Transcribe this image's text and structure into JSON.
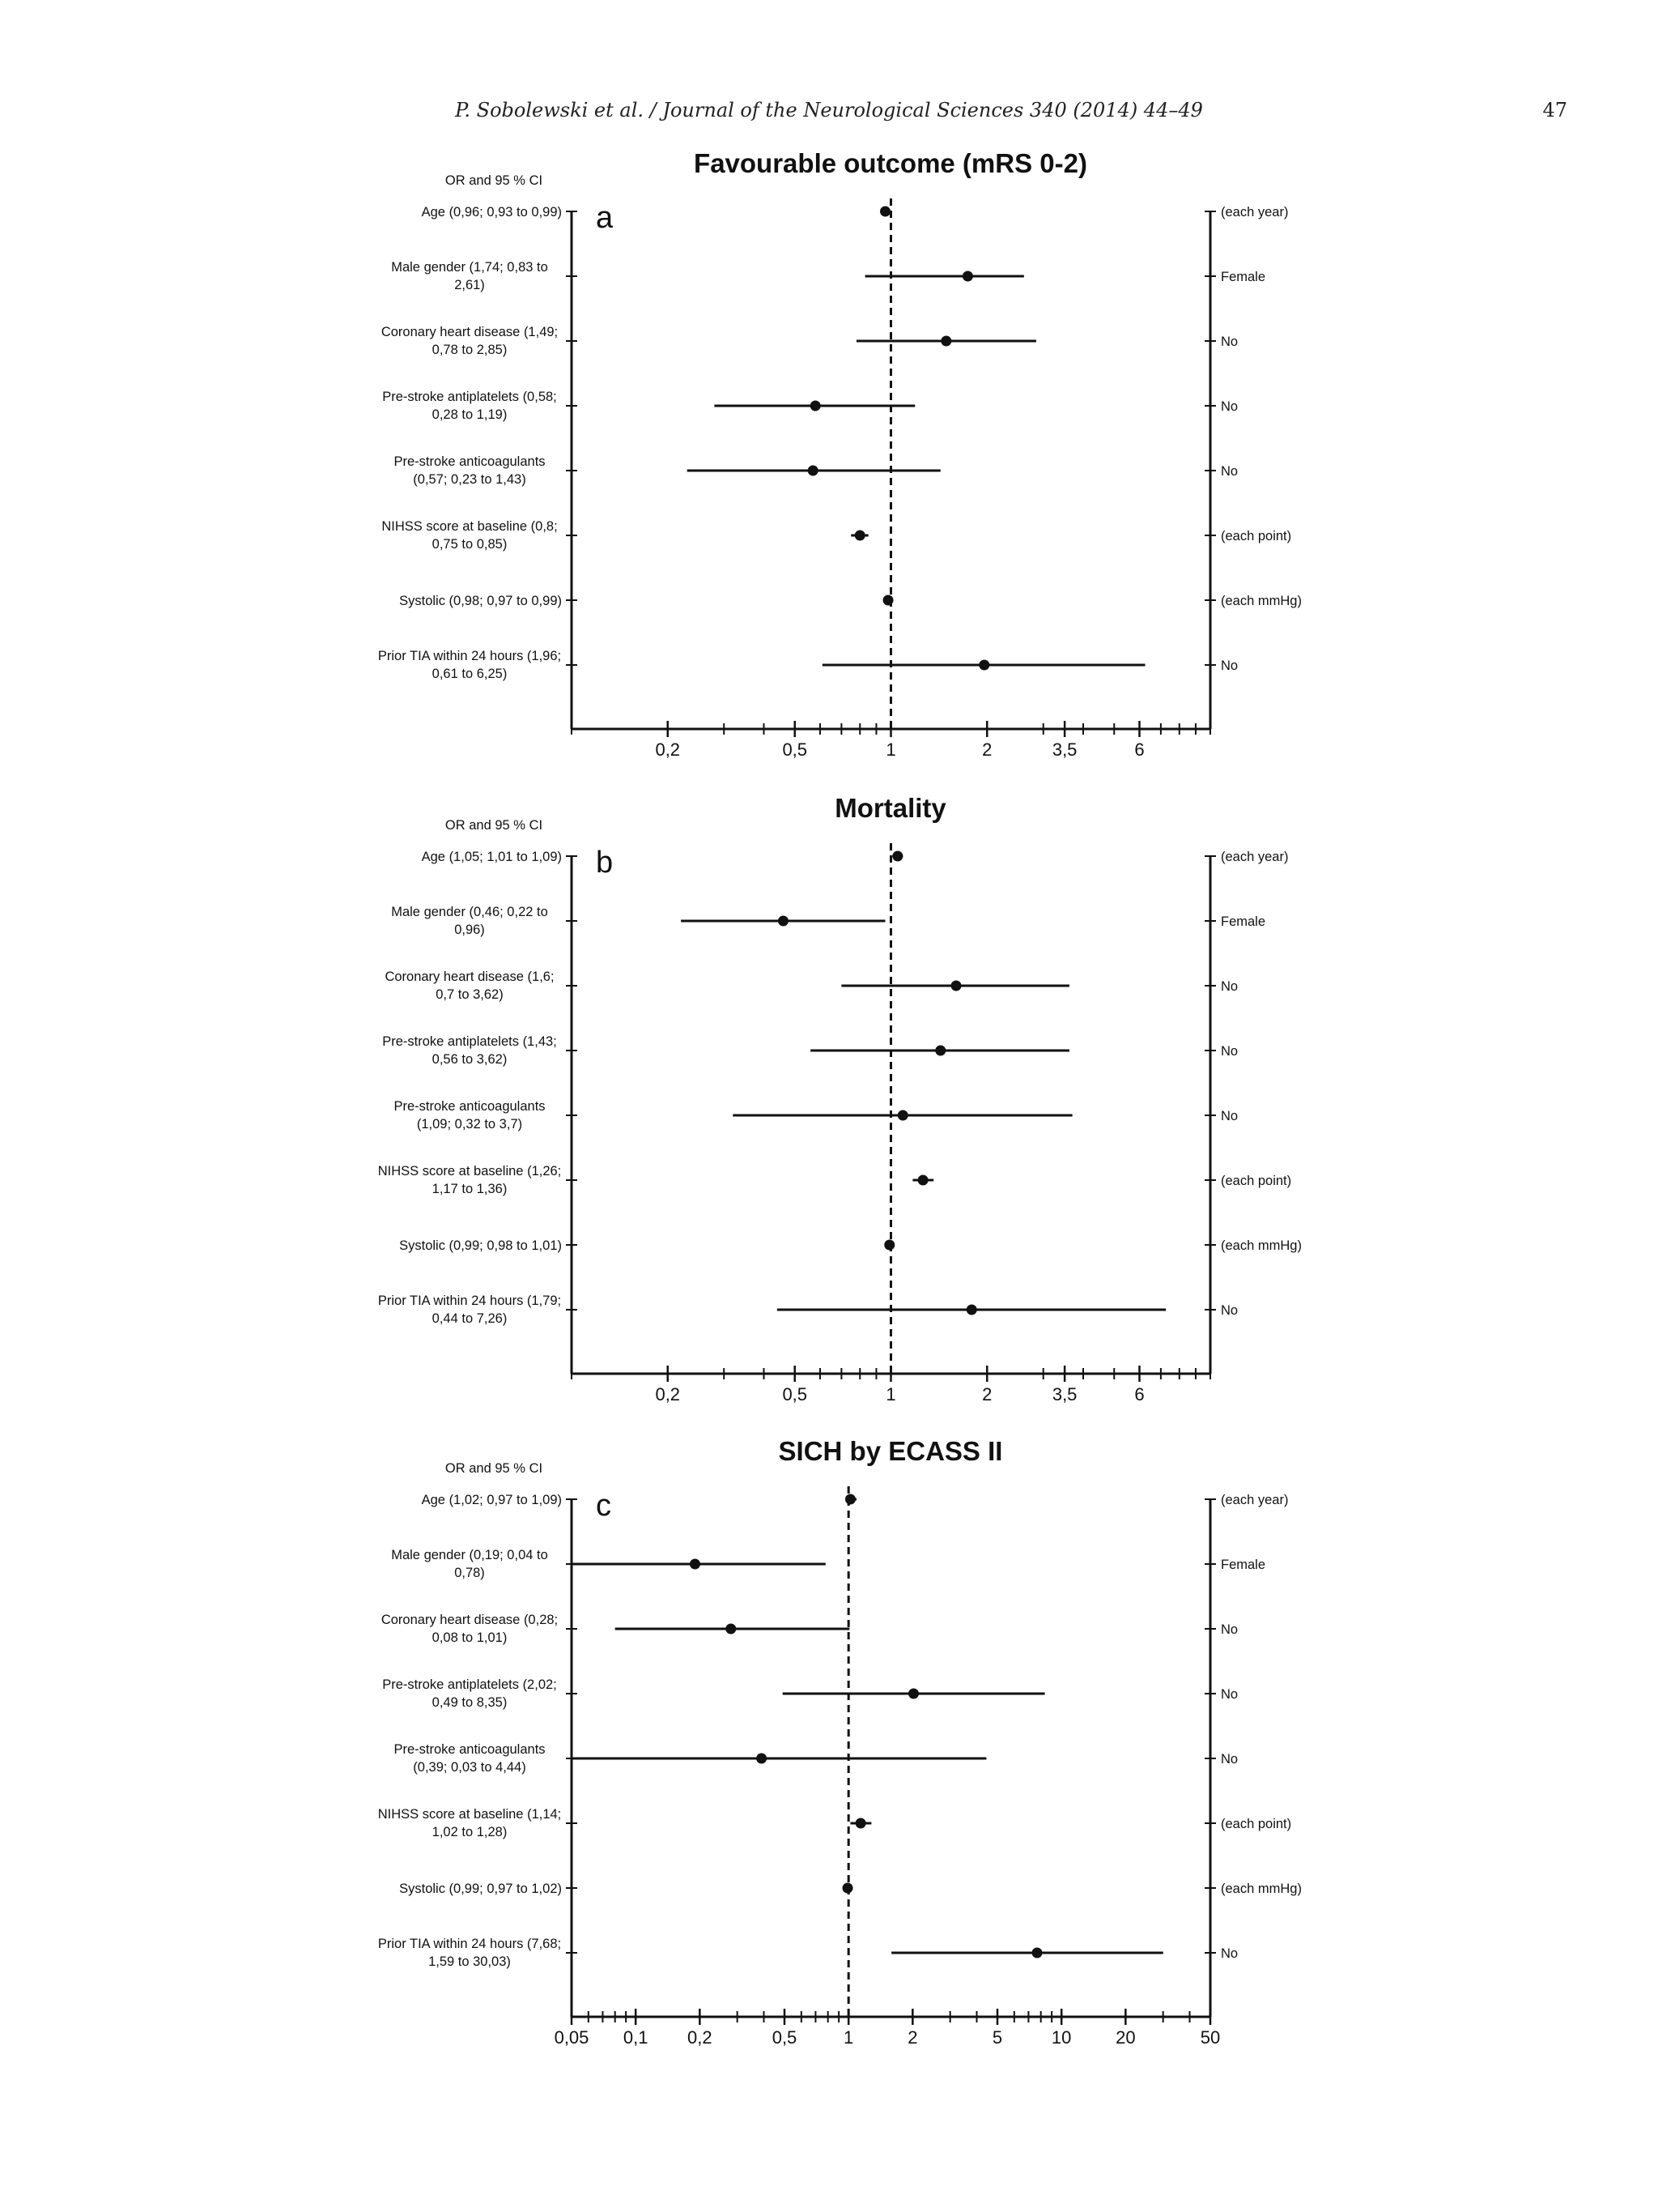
{
  "header": {
    "citation": "P. Sobolewski et al. / Journal of the Neurological Sciences 340 (2014) 44–49",
    "page_number": "47"
  },
  "chart_data": [
    {
      "type": "forest",
      "panel_letter": "a",
      "title": "Favourable outcome (mRS 0-2)",
      "column_header": "OR and 95 % CI",
      "scale": "log",
      "xlim": [
        0.1,
        10
      ],
      "reference_line": 1,
      "tick_values": [
        0.2,
        0.5,
        1,
        2,
        3.5,
        6
      ],
      "tick_labels": [
        "0,2",
        "0,5",
        "1",
        "2",
        "3,5",
        "6"
      ],
      "rows": [
        {
          "label_lines": [
            "Age (0,96;  0,93  to  0,99)"
          ],
          "reference": "(each year)",
          "or": 0.96,
          "lo": 0.93,
          "hi": 0.99
        },
        {
          "label_lines": [
            "Male gender (1,74;  0,83  to",
            "2,61)"
          ],
          "reference": "Female",
          "or": 1.74,
          "lo": 0.83,
          "hi": 2.61
        },
        {
          "label_lines": [
            "Coronary heart disease (1,49;",
            "0,78  to  2,85)"
          ],
          "reference": "No",
          "or": 1.49,
          "lo": 0.78,
          "hi": 2.85
        },
        {
          "label_lines": [
            "Pre-stroke antiplatelets (0,58;",
            "0,28  to  1,19)"
          ],
          "reference": "No",
          "or": 0.58,
          "lo": 0.28,
          "hi": 1.19
        },
        {
          "label_lines": [
            "Pre-stroke anticoagulants",
            "(0,57;  0,23  to  1,43)"
          ],
          "reference": "No",
          "or": 0.57,
          "lo": 0.23,
          "hi": 1.43
        },
        {
          "label_lines": [
            "NIHSS score at baseline (0,8;",
            "0,75  to  0,85)"
          ],
          "reference": "(each point)",
          "or": 0.8,
          "lo": 0.75,
          "hi": 0.85
        },
        {
          "label_lines": [
            "Systolic (0,98;  0,97  to  0,99)"
          ],
          "reference": "(each mmHg)",
          "or": 0.98,
          "lo": 0.97,
          "hi": 0.99
        },
        {
          "label_lines": [
            "Prior TIA within 24 hours (1,96;",
            "0,61  to  6,25)"
          ],
          "reference": "No",
          "or": 1.96,
          "lo": 0.61,
          "hi": 6.25
        }
      ]
    },
    {
      "type": "forest",
      "panel_letter": "b",
      "title": "Mortality",
      "column_header": "OR and 95 % CI",
      "scale": "log",
      "xlim": [
        0.1,
        10
      ],
      "reference_line": 1,
      "tick_values": [
        0.2,
        0.5,
        1,
        2,
        3.5,
        6
      ],
      "tick_labels": [
        "0,2",
        "0,5",
        "1",
        "2",
        "3,5",
        "6"
      ],
      "rows": [
        {
          "label_lines": [
            "Age (1,05;  1,01  to  1,09)"
          ],
          "reference": "(each year)",
          "or": 1.05,
          "lo": 1.01,
          "hi": 1.09
        },
        {
          "label_lines": [
            "Male gender (0,46;  0,22  to",
            "0,96)"
          ],
          "reference": "Female",
          "or": 0.46,
          "lo": 0.22,
          "hi": 0.96
        },
        {
          "label_lines": [
            "Coronary heart disease (1,6;",
            "0,7  to  3,62)"
          ],
          "reference": "No",
          "or": 1.6,
          "lo": 0.7,
          "hi": 3.62
        },
        {
          "label_lines": [
            "Pre-stroke antiplatelets (1,43;",
            "0,56  to  3,62)"
          ],
          "reference": "No",
          "or": 1.43,
          "lo": 0.56,
          "hi": 3.62
        },
        {
          "label_lines": [
            "Pre-stroke anticoagulants",
            "(1,09;  0,32  to  3,7)"
          ],
          "reference": "No",
          "or": 1.09,
          "lo": 0.32,
          "hi": 3.7
        },
        {
          "label_lines": [
            "NIHSS score at baseline (1,26;",
            "1,17  to  1,36)"
          ],
          "reference": "(each point)",
          "or": 1.26,
          "lo": 1.17,
          "hi": 1.36
        },
        {
          "label_lines": [
            "Systolic (0,99;  0,98  to  1,01)"
          ],
          "reference": "(each mmHg)",
          "or": 0.99,
          "lo": 0.98,
          "hi": 1.01
        },
        {
          "label_lines": [
            "Prior TIA within 24 hours (1,79;",
            "0,44  to  7,26)"
          ],
          "reference": "No",
          "or": 1.79,
          "lo": 0.44,
          "hi": 7.26
        }
      ]
    },
    {
      "type": "forest",
      "panel_letter": "c",
      "title": "SICH by ECASS II",
      "column_header": "OR and 95 % CI",
      "scale": "log",
      "xlim": [
        0.05,
        50
      ],
      "reference_line": 1,
      "tick_values": [
        0.05,
        0.1,
        0.2,
        0.5,
        1,
        2,
        5,
        10,
        20,
        50
      ],
      "tick_labels": [
        "0,05",
        "0,1",
        "0,2",
        "0,5",
        "1",
        "2",
        "5",
        "10",
        "20",
        "50"
      ],
      "rows": [
        {
          "label_lines": [
            "Age (1,02;  0,97  to  1,09)"
          ],
          "reference": "(each year)",
          "or": 1.02,
          "lo": 0.97,
          "hi": 1.09
        },
        {
          "label_lines": [
            "Male gender (0,19;  0,04  to",
            "0,78)"
          ],
          "reference": "Female",
          "or": 0.19,
          "lo": 0.04,
          "hi": 0.78
        },
        {
          "label_lines": [
            "Coronary heart disease (0,28;",
            "0,08  to  1,01)"
          ],
          "reference": "No",
          "or": 0.28,
          "lo": 0.08,
          "hi": 1.01
        },
        {
          "label_lines": [
            "Pre-stroke antiplatelets (2,02;",
            "0,49  to  8,35)"
          ],
          "reference": "No",
          "or": 2.02,
          "lo": 0.49,
          "hi": 8.35
        },
        {
          "label_lines": [
            "Pre-stroke anticoagulants",
            "(0,39;  0,03  to  4,44)"
          ],
          "reference": "No",
          "or": 0.39,
          "lo": 0.03,
          "hi": 4.44
        },
        {
          "label_lines": [
            "NIHSS score at baseline (1,14;",
            "1,02  to  1,28)"
          ],
          "reference": "(each point)",
          "or": 1.14,
          "lo": 1.02,
          "hi": 1.28
        },
        {
          "label_lines": [
            "Systolic (0,99;  0,97  to  1,02)"
          ],
          "reference": "(each mmHg)",
          "or": 0.99,
          "lo": 0.97,
          "hi": 1.02
        },
        {
          "label_lines": [
            "Prior TIA within 24 hours (7,68;",
            "1,59  to  30,03)"
          ],
          "reference": "No",
          "or": 7.68,
          "lo": 1.59,
          "hi": 30.03
        }
      ]
    }
  ]
}
